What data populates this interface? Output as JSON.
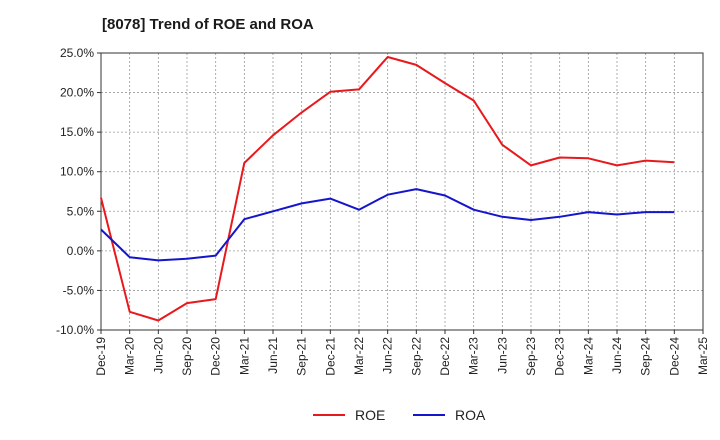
{
  "chart_data": {
    "type": "line",
    "title": "[8078]  Trend of ROE and ROA",
    "categories": [
      "Dec-19",
      "Mar-20",
      "Jun-20",
      "Sep-20",
      "Dec-20",
      "Mar-21",
      "Jun-21",
      "Sep-21",
      "Dec-21",
      "Mar-22",
      "Jun-22",
      "Sep-22",
      "Dec-22",
      "Mar-23",
      "Jun-23",
      "Sep-23",
      "Dec-23",
      "Mar-24",
      "Jun-24",
      "Sep-24",
      "Dec-24",
      "Mar-25"
    ],
    "y_ticks": [
      "25.0%",
      "20.0%",
      "15.0%",
      "10.0%",
      "5.0%",
      "0.0%",
      "-5.0%",
      "-10.0%"
    ],
    "y_tick_values": [
      25,
      20,
      15,
      10,
      5,
      0,
      -5,
      -10
    ],
    "ylim": [
      -10,
      25
    ],
    "grid": true,
    "legend_position": "bottom-center",
    "series": [
      {
        "name": "ROE",
        "color": "#e8191c",
        "values": [
          6.7,
          -7.7,
          -8.8,
          -6.6,
          -6.1,
          11.1,
          14.6,
          17.5,
          20.1,
          20.4,
          24.5,
          23.5,
          21.2,
          19.0,
          13.4,
          10.8,
          11.8,
          11.7,
          10.8,
          11.4,
          11.2,
          null
        ]
      },
      {
        "name": "ROA",
        "color": "#1515cc",
        "values": [
          2.7,
          -0.8,
          -1.2,
          -1.0,
          -0.6,
          4.0,
          5.0,
          6.0,
          6.6,
          5.2,
          7.1,
          7.8,
          7.0,
          5.2,
          4.3,
          3.9,
          4.3,
          4.9,
          4.6,
          4.9,
          4.9,
          null
        ]
      }
    ]
  }
}
